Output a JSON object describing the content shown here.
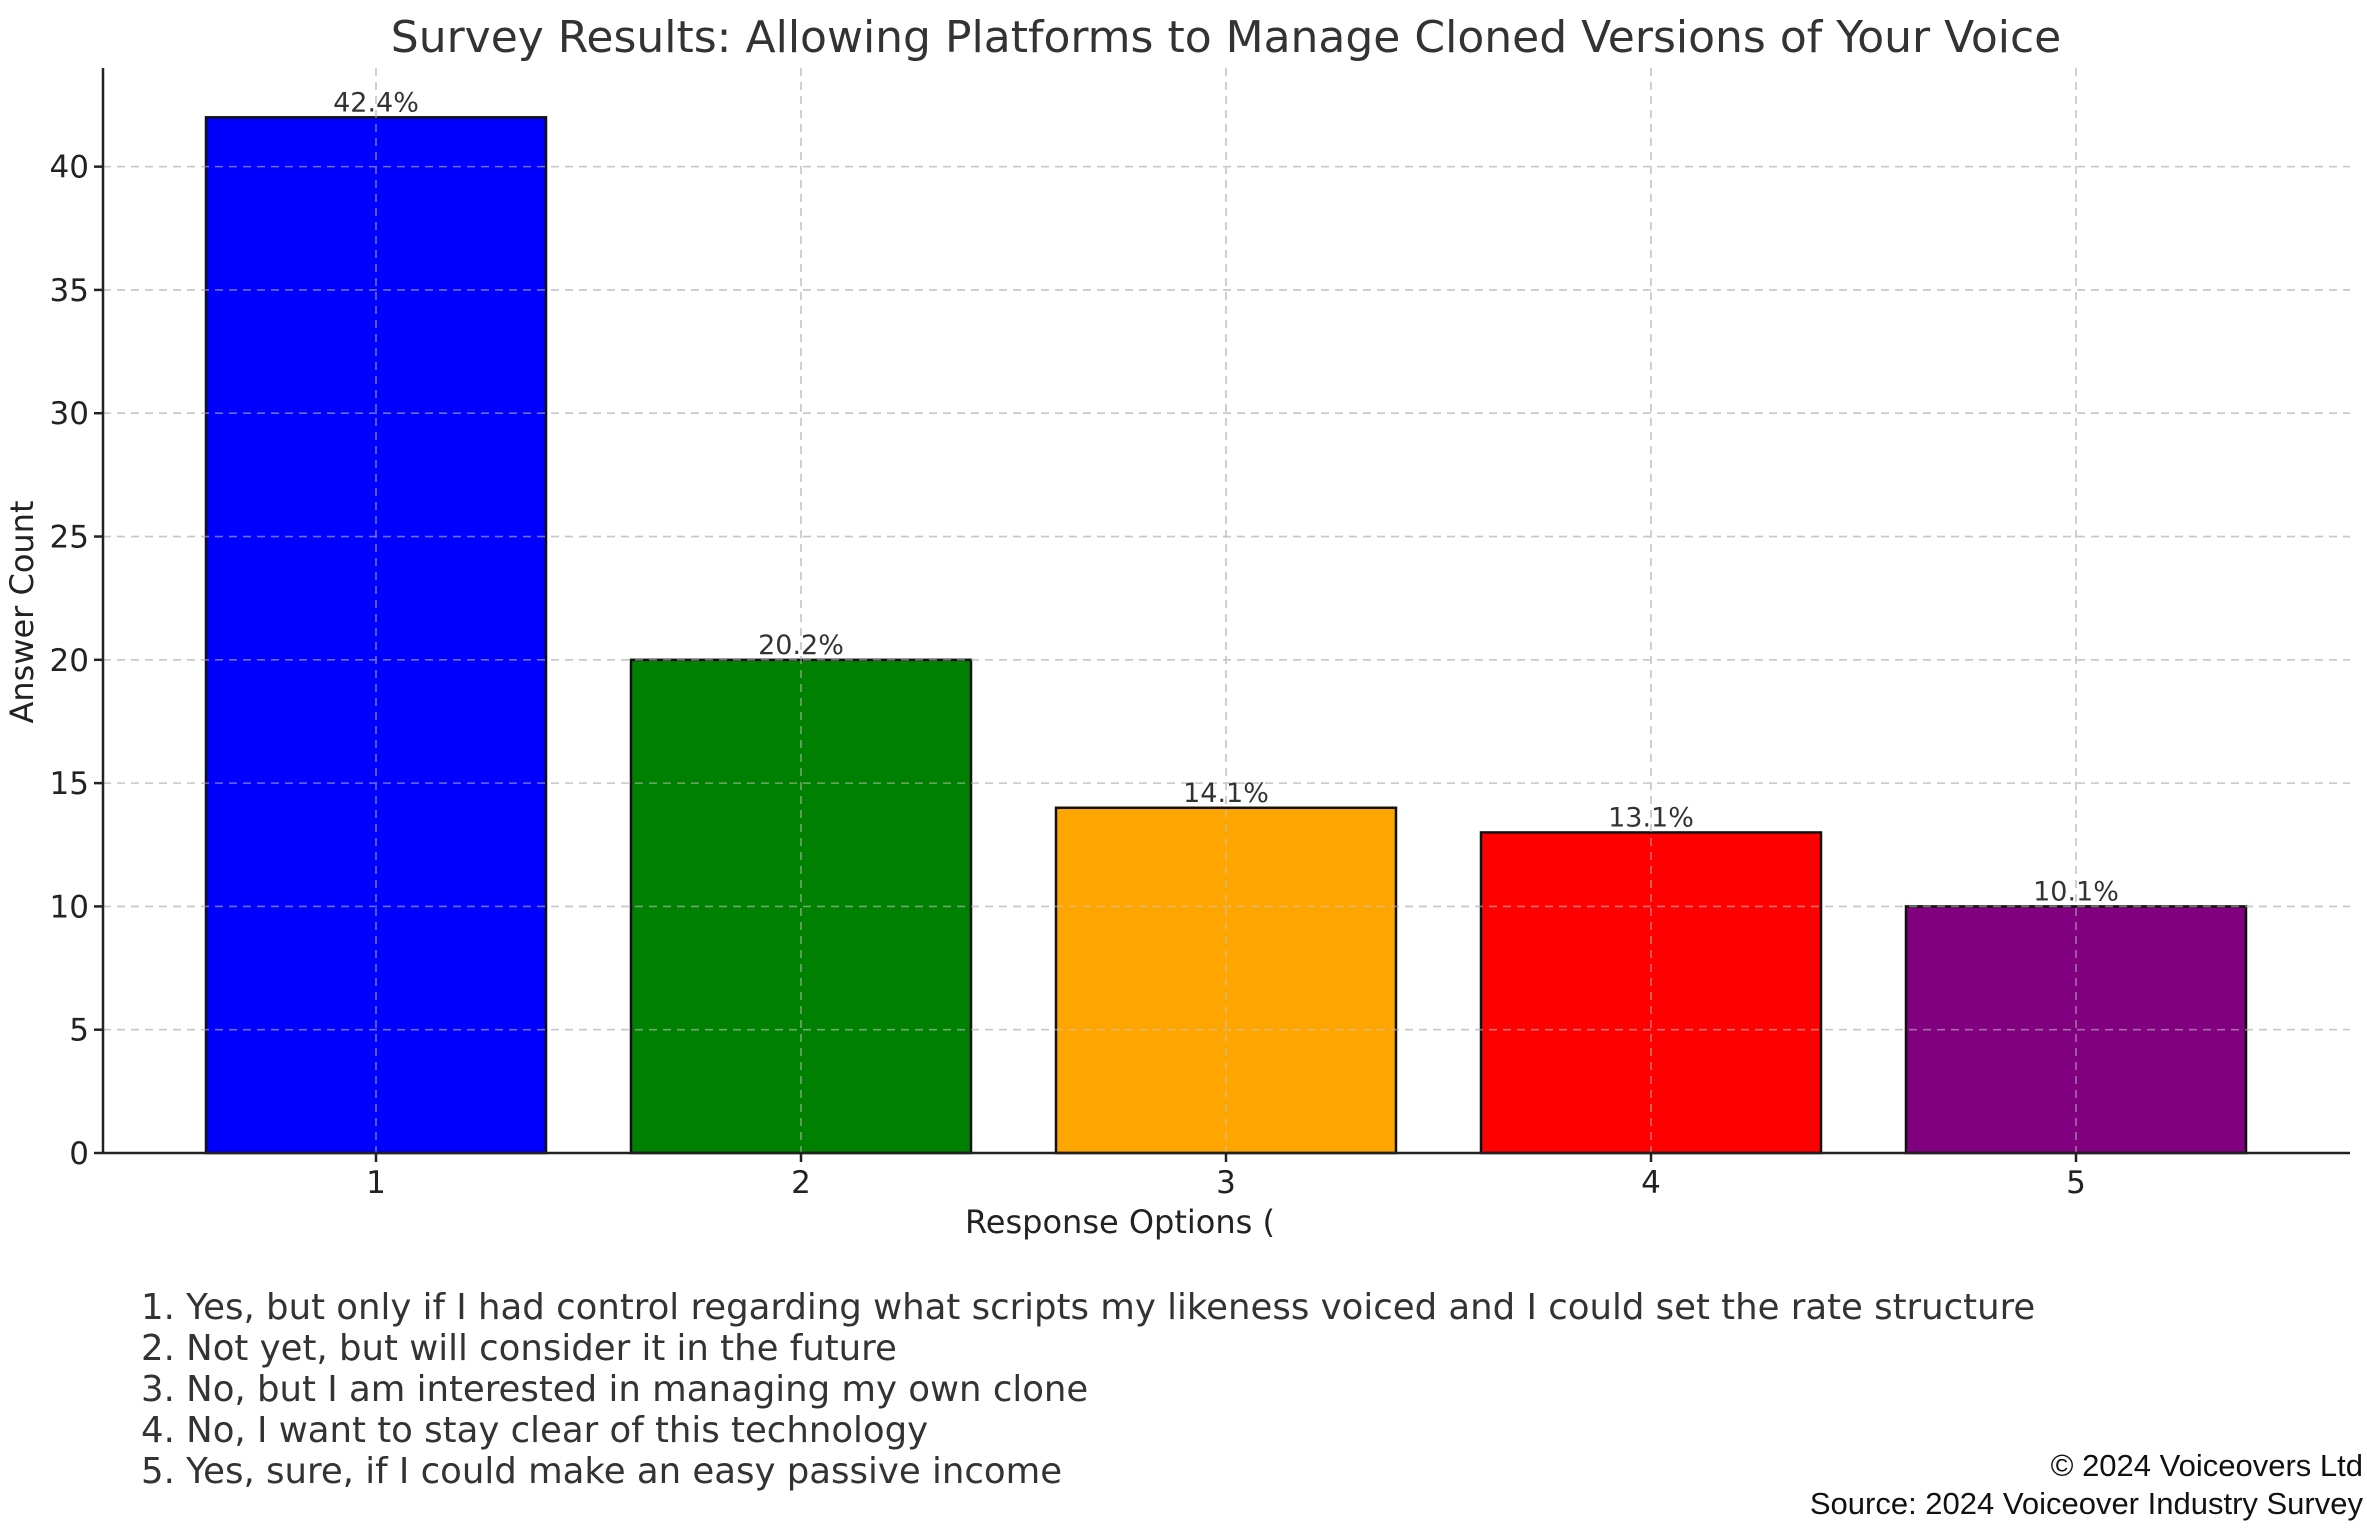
{
  "chart_data": {
    "type": "bar",
    "title": "Survey Results: Allowing Platforms to Manage Cloned Versions of Your Voice",
    "xlabel": "Response Options (",
    "ylabel": "Answer Count",
    "categories": [
      "1",
      "2",
      "3",
      "4",
      "5"
    ],
    "values": [
      42,
      20,
      14,
      13,
      10
    ],
    "data_labels": [
      "42.4%",
      "20.2%",
      "14.1%",
      "13.1%",
      "10.1%"
    ],
    "colors": [
      "#0000ff",
      "#008000",
      "#ffa500",
      "#ff0000",
      "#800080"
    ],
    "ylim": [
      0,
      44
    ],
    "yticks": [
      0,
      5,
      10,
      15,
      20,
      25,
      30,
      35,
      40
    ],
    "grid": true,
    "legend_text": [
      "1. Yes, but only if I had control regarding what scripts my likeness voiced and I could set the rate structure",
      "2. Not yet, but will consider it in the future",
      "3. No, but I am interested in managing my own clone",
      "4. No, I want to stay clear of this technology",
      "5. Yes, sure, if I could make an easy passive income"
    ]
  },
  "footer": {
    "copyright": "© 2024 Voiceovers Ltd",
    "source": "Source: 2024 Voiceover Industry Survey"
  }
}
